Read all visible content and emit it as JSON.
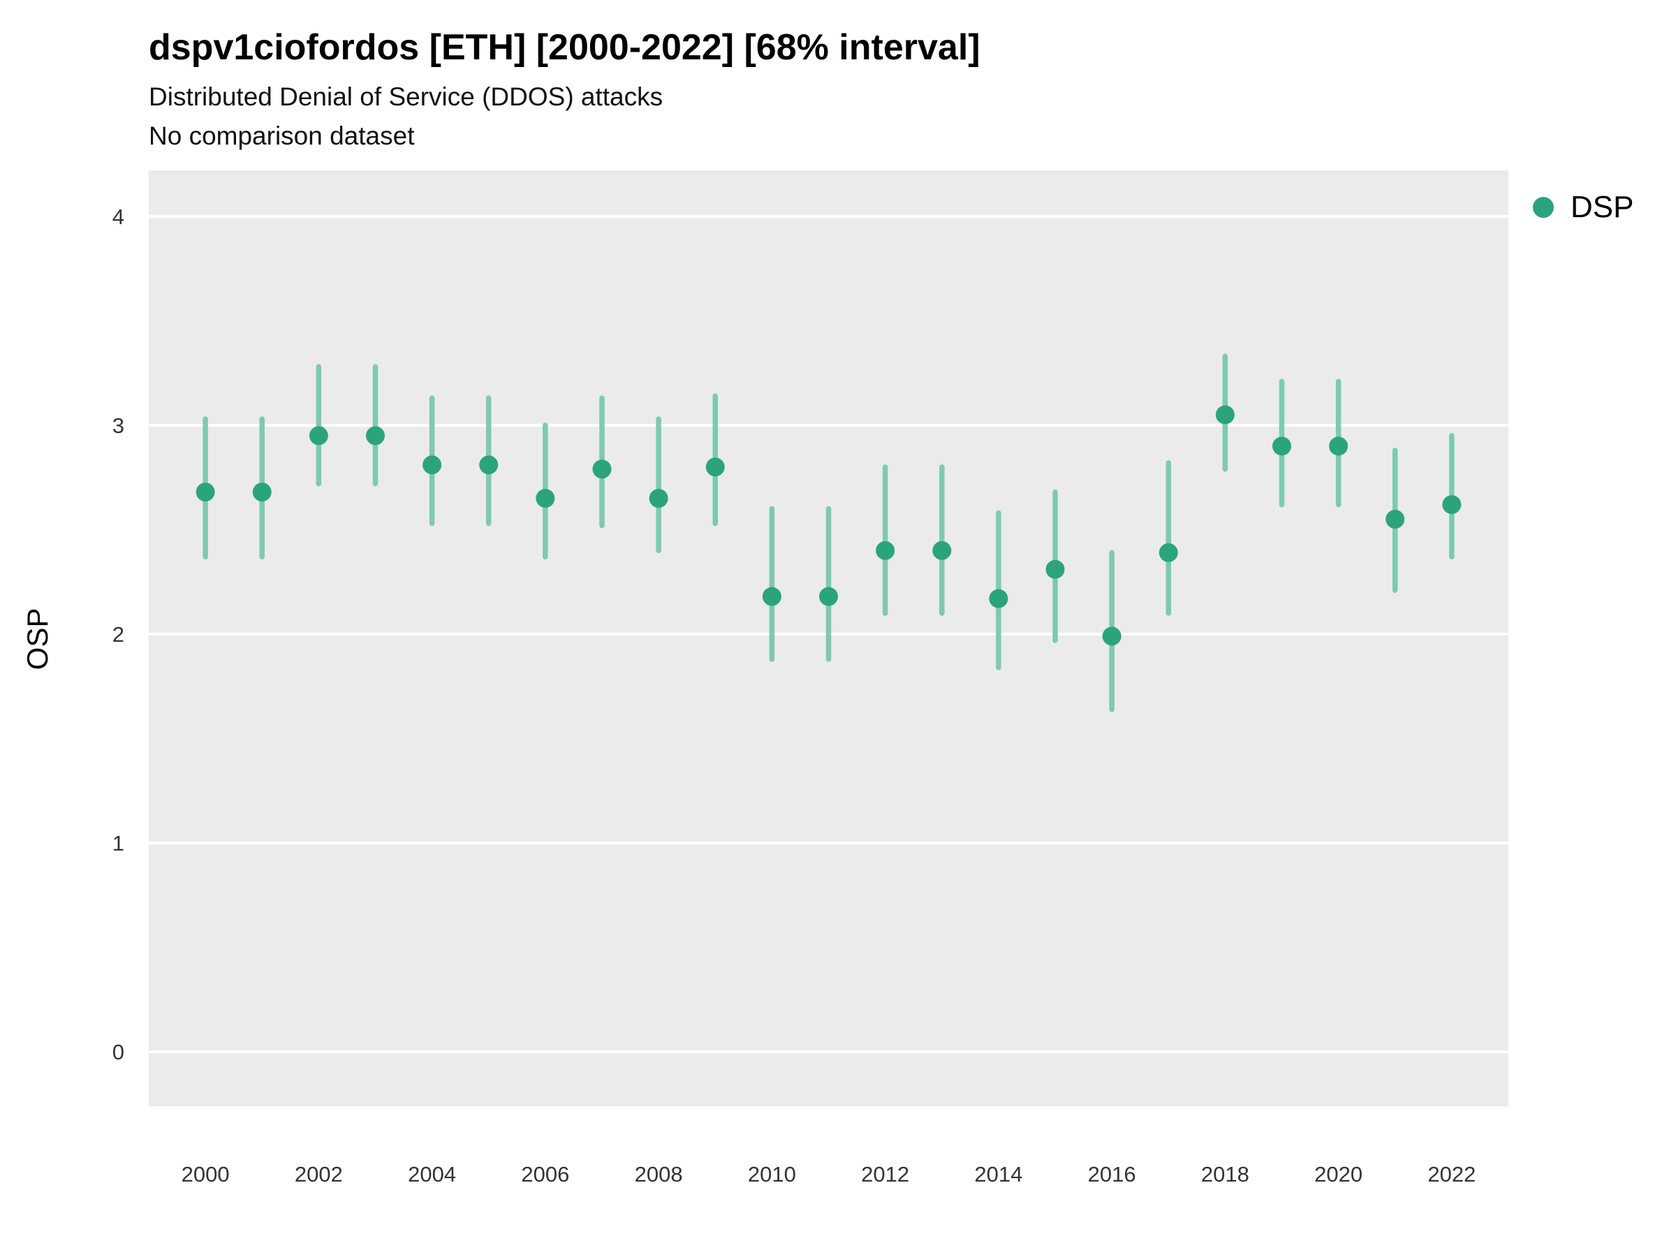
{
  "header": {
    "title": "dspv1ciofordos [ETH] [2000-2022] [68% interval]",
    "subtitle": "Distributed Denial of Service (DDOS) attacks",
    "note": "No comparison dataset"
  },
  "axis": {
    "ylabel": "OSP"
  },
  "legend": {
    "items": [
      {
        "label": "DSP",
        "color": "#2BA47E"
      }
    ]
  },
  "colors": {
    "point": "#2BA47E",
    "interval": "#79C9AC",
    "panel_bg": "#EBEBEB",
    "grid": "#FFFFFF",
    "tick_text": "#333333"
  },
  "chart_data": {
    "type": "scatter",
    "title": "dspv1ciofordos [ETH] [2000-2022] [68% interval]",
    "subtitle": "Distributed Denial of Service (DDOS) attacks",
    "note": "No comparison dataset",
    "xlabel": "",
    "ylabel": "OSP",
    "legend_position": "right",
    "grid": true,
    "interval_level": "68%",
    "x": [
      2000,
      2001,
      2002,
      2003,
      2004,
      2005,
      2006,
      2007,
      2008,
      2009,
      2010,
      2011,
      2012,
      2013,
      2014,
      2015,
      2016,
      2017,
      2018,
      2019,
      2020,
      2021,
      2022
    ],
    "series": [
      {
        "name": "DSP",
        "values": [
          2.68,
          2.68,
          2.95,
          2.95,
          2.81,
          2.81,
          2.65,
          2.79,
          2.65,
          2.8,
          2.18,
          2.18,
          2.4,
          2.4,
          2.17,
          2.31,
          1.99,
          2.39,
          3.05,
          2.9,
          2.9,
          2.55,
          2.62
        ],
        "lower": [
          2.37,
          2.37,
          2.72,
          2.72,
          2.53,
          2.53,
          2.37,
          2.52,
          2.4,
          2.53,
          1.88,
          1.88,
          2.1,
          2.1,
          1.84,
          1.97,
          1.64,
          2.1,
          2.79,
          2.62,
          2.62,
          2.21,
          2.37
        ],
        "upper": [
          3.03,
          3.03,
          3.28,
          3.28,
          3.13,
          3.13,
          3.0,
          3.13,
          3.03,
          3.14,
          2.6,
          2.6,
          2.8,
          2.8,
          2.58,
          2.68,
          2.39,
          2.82,
          3.33,
          3.21,
          3.21,
          2.88,
          2.95
        ]
      }
    ],
    "xticks": [
      2000,
      2002,
      2004,
      2006,
      2008,
      2010,
      2012,
      2014,
      2016,
      2018,
      2020,
      2022
    ],
    "yticks": [
      0,
      1,
      2,
      3,
      4
    ],
    "xlim": [
      1999.0,
      2023.0
    ],
    "ylim": [
      -0.26,
      4.22
    ]
  }
}
